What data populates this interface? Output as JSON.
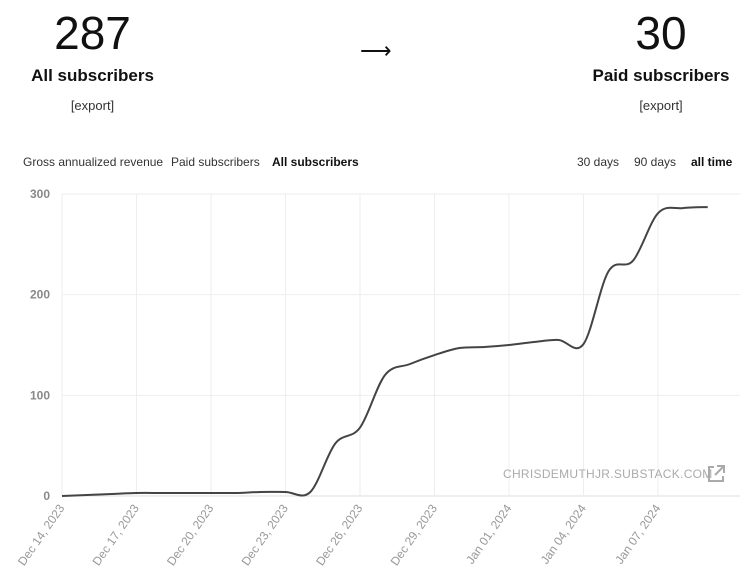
{
  "stats": {
    "all_count": "287",
    "all_label": "All subscribers",
    "all_export": "[export]",
    "arrow": "⟶",
    "paid_count": "30",
    "paid_label": "Paid subscribers",
    "paid_export": "[export]"
  },
  "metric_tabs": [
    "Gross annualized revenue",
    "Paid subscribers",
    "All subscribers"
  ],
  "active_metric": "All subscribers",
  "range_tabs": [
    "30 days",
    "90 days",
    "all time"
  ],
  "active_range": "all time",
  "watermark": "CHRISDEMUTHJR.SUBSTACK.COM",
  "icons": {
    "external_link": "external-link-icon"
  },
  "colors": {
    "line": "#444444",
    "grid": "#eeeeee",
    "axis": "#dddddd"
  },
  "chart_data": {
    "type": "line",
    "title": "",
    "xlabel": "",
    "ylabel": "",
    "ylim": [
      0,
      300
    ],
    "yticks": [
      0,
      100,
      200,
      300
    ],
    "xlim_days": [
      0,
      27.3
    ],
    "xtick_labels": [
      "Dec 14, 2023",
      "Dec 17, 2023",
      "Dec 20, 2023",
      "Dec 23, 2023",
      "Dec 26, 2023",
      "Dec 29, 2023",
      "Jan 01, 2024",
      "Jan 04, 2024",
      "Jan 07, 2024"
    ],
    "x": [
      "2023-12-14",
      "2023-12-15",
      "2023-12-16",
      "2023-12-17",
      "2023-12-18",
      "2023-12-19",
      "2023-12-20",
      "2023-12-21",
      "2023-12-22",
      "2023-12-23",
      "2023-12-24",
      "2023-12-25",
      "2023-12-26",
      "2023-12-27",
      "2023-12-28",
      "2023-12-29",
      "2023-12-30",
      "2023-12-31",
      "2024-01-01",
      "2024-01-02",
      "2024-01-03",
      "2024-01-04",
      "2024-01-05",
      "2024-01-06",
      "2024-01-07",
      "2024-01-08",
      "2024-01-09"
    ],
    "values": [
      0,
      1,
      2,
      3,
      3,
      3,
      3,
      3,
      4,
      4,
      4,
      52,
      68,
      120,
      131,
      140,
      147,
      148,
      150,
      153,
      155,
      151,
      223,
      234,
      281,
      286,
      287
    ],
    "grid": true,
    "legend": "none"
  }
}
